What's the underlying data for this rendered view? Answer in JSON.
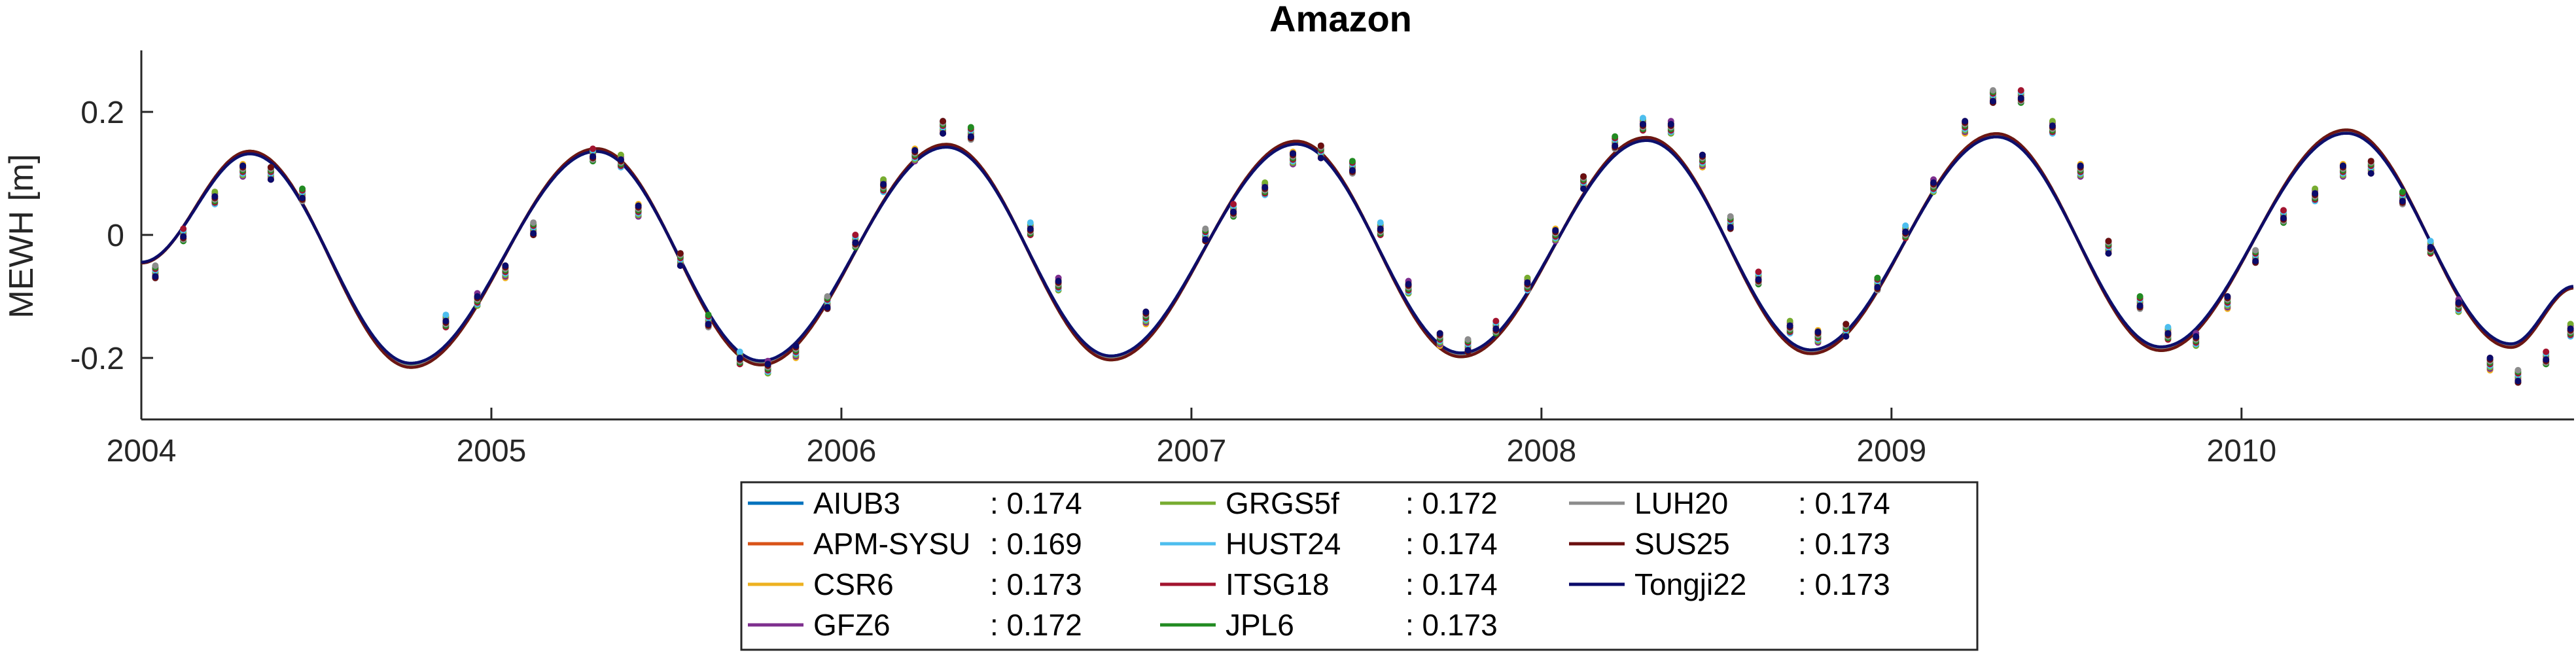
{
  "chart_data": {
    "type": "line",
    "title": "Amazon",
    "xlabel": "",
    "ylabel": "MEWH [m]",
    "xlim": [
      2004.0,
      2010.95
    ],
    "ylim": [
      -0.3,
      0.3
    ],
    "xticks": [
      "2004",
      "2005",
      "2006",
      "2007",
      "2008",
      "2009",
      "2010"
    ],
    "yticks": [
      "0.2",
      "0",
      "-0.2"
    ],
    "ytick_values": [
      0.2,
      0,
      -0.2
    ],
    "grid": false,
    "legend_position": "bottom",
    "fit_model_peaks": [
      {
        "x": 2004.31,
        "y": 0.134
      },
      {
        "x": 2004.77,
        "y": -0.212
      },
      {
        "x": 2005.3,
        "y": 0.138
      },
      {
        "x": 2005.77,
        "y": -0.208
      },
      {
        "x": 2006.3,
        "y": 0.145
      },
      {
        "x": 2006.77,
        "y": -0.2
      },
      {
        "x": 2007.3,
        "y": 0.15
      },
      {
        "x": 2007.77,
        "y": -0.195
      },
      {
        "x": 2008.3,
        "y": 0.156
      },
      {
        "x": 2008.77,
        "y": -0.19
      },
      {
        "x": 2009.3,
        "y": 0.162
      },
      {
        "x": 2009.77,
        "y": -0.185
      },
      {
        "x": 2010.3,
        "y": 0.168
      },
      {
        "x": 2010.77,
        "y": -0.18
      },
      {
        "x": 2010.95,
        "y": -0.085
      }
    ],
    "fit_model_start": {
      "x": 2004.0,
      "y": -0.045
    },
    "monthly_observations": [
      {
        "x": 2004.04,
        "y": -0.06
      },
      {
        "x": 2004.12,
        "y": 0.0
      },
      {
        "x": 2004.21,
        "y": 0.06
      },
      {
        "x": 2004.29,
        "y": 0.105
      },
      {
        "x": 2004.37,
        "y": 0.1
      },
      {
        "x": 2004.46,
        "y": 0.065
      },
      {
        "x": 2004.87,
        "y": -0.14
      },
      {
        "x": 2004.96,
        "y": -0.105
      },
      {
        "x": 2005.04,
        "y": -0.06
      },
      {
        "x": 2005.12,
        "y": 0.01
      },
      {
        "x": 2005.29,
        "y": 0.13
      },
      {
        "x": 2005.37,
        "y": 0.12
      },
      {
        "x": 2005.42,
        "y": 0.04
      },
      {
        "x": 2005.54,
        "y": -0.04
      },
      {
        "x": 2005.62,
        "y": -0.14
      },
      {
        "x": 2005.71,
        "y": -0.2
      },
      {
        "x": 2005.79,
        "y": -0.215
      },
      {
        "x": 2005.87,
        "y": -0.19
      },
      {
        "x": 2005.96,
        "y": -0.11
      },
      {
        "x": 2006.04,
        "y": -0.01
      },
      {
        "x": 2006.12,
        "y": 0.08
      },
      {
        "x": 2006.21,
        "y": 0.13
      },
      {
        "x": 2006.29,
        "y": 0.175
      },
      {
        "x": 2006.37,
        "y": 0.165
      },
      {
        "x": 2006.54,
        "y": 0.01
      },
      {
        "x": 2006.62,
        "y": -0.08
      },
      {
        "x": 2006.87,
        "y": -0.135
      },
      {
        "x": 2007.04,
        "y": 0.0
      },
      {
        "x": 2007.12,
        "y": 0.04
      },
      {
        "x": 2007.21,
        "y": 0.075
      },
      {
        "x": 2007.29,
        "y": 0.125
      },
      {
        "x": 2007.37,
        "y": 0.135
      },
      {
        "x": 2007.46,
        "y": 0.11
      },
      {
        "x": 2007.54,
        "y": 0.01
      },
      {
        "x": 2007.62,
        "y": -0.085
      },
      {
        "x": 2007.71,
        "y": -0.17
      },
      {
        "x": 2007.79,
        "y": -0.18
      },
      {
        "x": 2007.87,
        "y": -0.15
      },
      {
        "x": 2007.96,
        "y": -0.08
      },
      {
        "x": 2008.04,
        "y": 0.0
      },
      {
        "x": 2008.12,
        "y": 0.085
      },
      {
        "x": 2008.21,
        "y": 0.15
      },
      {
        "x": 2008.29,
        "y": 0.18
      },
      {
        "x": 2008.37,
        "y": 0.175
      },
      {
        "x": 2008.46,
        "y": 0.12
      },
      {
        "x": 2008.54,
        "y": 0.02
      },
      {
        "x": 2008.62,
        "y": -0.07
      },
      {
        "x": 2008.71,
        "y": -0.15
      },
      {
        "x": 2008.79,
        "y": -0.165
      },
      {
        "x": 2008.87,
        "y": -0.155
      },
      {
        "x": 2008.96,
        "y": -0.08
      },
      {
        "x": 2009.04,
        "y": 0.005
      },
      {
        "x": 2009.12,
        "y": 0.08
      },
      {
        "x": 2009.21,
        "y": 0.175
      },
      {
        "x": 2009.29,
        "y": 0.225
      },
      {
        "x": 2009.37,
        "y": 0.225
      },
      {
        "x": 2009.46,
        "y": 0.175
      },
      {
        "x": 2009.54,
        "y": 0.105
      },
      {
        "x": 2009.62,
        "y": -0.02
      },
      {
        "x": 2009.71,
        "y": -0.11
      },
      {
        "x": 2009.79,
        "y": -0.16
      },
      {
        "x": 2009.87,
        "y": -0.17
      },
      {
        "x": 2009.96,
        "y": -0.11
      },
      {
        "x": 2010.04,
        "y": -0.035
      },
      {
        "x": 2010.12,
        "y": 0.03
      },
      {
        "x": 2010.21,
        "y": 0.065
      },
      {
        "x": 2010.29,
        "y": 0.105
      },
      {
        "x": 2010.37,
        "y": 0.11
      },
      {
        "x": 2010.46,
        "y": 0.06
      },
      {
        "x": 2010.54,
        "y": -0.02
      },
      {
        "x": 2010.62,
        "y": -0.115
      },
      {
        "x": 2010.71,
        "y": -0.21
      },
      {
        "x": 2010.79,
        "y": -0.23
      },
      {
        "x": 2010.87,
        "y": -0.2
      },
      {
        "x": 2010.94,
        "y": -0.155
      }
    ],
    "series": [
      {
        "name": "AIUB3",
        "value": ": 0.174",
        "color": "#0072BD"
      },
      {
        "name": "APM-SYSU",
        "value": ": 0.169",
        "color": "#D95319"
      },
      {
        "name": "CSR6",
        "value": ": 0.173",
        "color": "#EDB120"
      },
      {
        "name": "GFZ6",
        "value": ": 0.172",
        "color": "#7E2F8E"
      },
      {
        "name": "GRGS5f",
        "value": ": 0.172",
        "color": "#77AC30"
      },
      {
        "name": "HUST24",
        "value": ": 0.174",
        "color": "#4DBEEE"
      },
      {
        "name": "ITSG18",
        "value": ": 0.174",
        "color": "#A2142F"
      },
      {
        "name": "JPL6",
        "value": ": 0.173",
        "color": "#228B22"
      },
      {
        "name": "LUH20",
        "value": ": 0.174",
        "color": "#8C8C8C"
      },
      {
        "name": "SUS25",
        "value": ": 0.173",
        "color": "#6B0F0F"
      },
      {
        "name": "Tongji22",
        "value": ": 0.173",
        "color": "#0B0B6B"
      }
    ]
  }
}
